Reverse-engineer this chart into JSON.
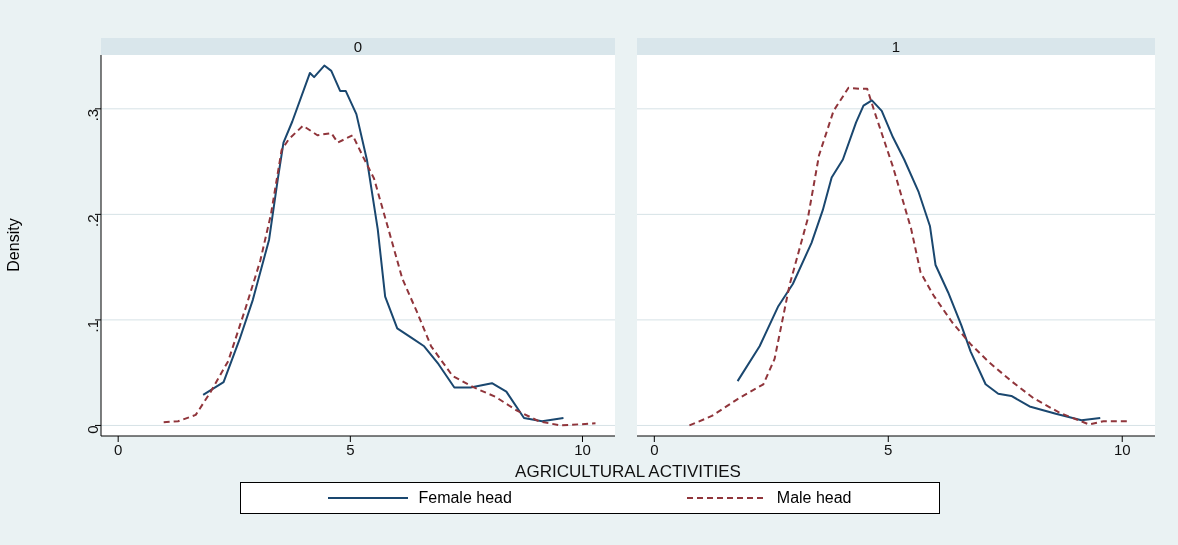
{
  "chart_data": [
    {
      "type": "line",
      "title": "0",
      "ylabel": "Density",
      "xlabel": "AGRICULTURAL ACTIVITIES",
      "xlim": [
        -0.37,
        10.7
      ],
      "xticks": [
        0,
        5,
        10
      ],
      "ylim": [
        -0.01,
        0.351
      ],
      "yticks": [
        {
          "value": 0,
          "label": "0"
        },
        {
          "value": 0.1,
          "label": ".1"
        },
        {
          "value": 0.2,
          "label": ".2"
        },
        {
          "value": 0.3,
          "label": ".3"
        }
      ],
      "grid": "y",
      "legend": "bottom",
      "series": [
        {
          "name": "Female head",
          "color": "#1a476f",
          "line_style": "solid",
          "x": [
            1.83,
            2.27,
            2.61,
            2.9,
            3.25,
            3.44,
            3.56,
            3.75,
            4.13,
            4.22,
            4.44,
            4.59,
            4.78,
            4.9,
            5.13,
            5.36,
            5.59,
            5.75,
            6.01,
            6.32,
            6.59,
            6.9,
            7.24,
            7.59,
            8.05,
            8.36,
            8.74,
            9.13,
            9.59
          ],
          "values": [
            0.029,
            0.041,
            0.081,
            0.119,
            0.176,
            0.234,
            0.268,
            0.288,
            0.334,
            0.33,
            0.341,
            0.336,
            0.317,
            0.317,
            0.295,
            0.251,
            0.186,
            0.122,
            0.092,
            0.083,
            0.075,
            0.058,
            0.036,
            0.036,
            0.04,
            0.032,
            0.007,
            0.004,
            0.007
          ]
        },
        {
          "name": "Male head",
          "color": "#90353b",
          "line_style": "dashed",
          "x": [
            0.98,
            1.29,
            1.67,
            1.98,
            2.37,
            2.75,
            3.06,
            3.29,
            3.52,
            3.67,
            3.98,
            4.29,
            4.59,
            4.73,
            5.05,
            5.28,
            5.51,
            5.82,
            6.12,
            6.43,
            6.74,
            7.2,
            7.66,
            8.13,
            8.59,
            9.06,
            9.52,
            10.28
          ],
          "values": [
            0.003,
            0.004,
            0.01,
            0.031,
            0.061,
            0.112,
            0.156,
            0.2,
            0.261,
            0.271,
            0.284,
            0.275,
            0.277,
            0.268,
            0.275,
            0.254,
            0.234,
            0.186,
            0.139,
            0.108,
            0.075,
            0.047,
            0.036,
            0.027,
            0.014,
            0.004,
            0.0,
            0.002
          ]
        }
      ]
    },
    {
      "type": "line",
      "title": "1",
      "xlim": [
        -0.37,
        10.7
      ],
      "xticks": [
        0,
        5,
        10
      ],
      "ylim": [
        -0.01,
        0.351
      ],
      "yticks": [
        0,
        0.1,
        0.2,
        0.3
      ],
      "grid": "y",
      "tick_labels": "x",
      "series": [
        {
          "color": "#1a476f",
          "line_style": "solid",
          "x": [
            1.78,
            2.25,
            2.65,
            2.96,
            3.36,
            3.6,
            3.79,
            4.03,
            4.31,
            4.47,
            4.65,
            4.86,
            5.1,
            5.34,
            5.65,
            5.89,
            6.01,
            6.28,
            6.56,
            6.76,
            7.08,
            7.35,
            7.63,
            8.02,
            8.58,
            9.13,
            9.53
          ],
          "values": [
            0.042,
            0.075,
            0.113,
            0.134,
            0.173,
            0.204,
            0.235,
            0.252,
            0.287,
            0.303,
            0.308,
            0.298,
            0.273,
            0.252,
            0.221,
            0.189,
            0.152,
            0.126,
            0.095,
            0.07,
            0.039,
            0.03,
            0.028,
            0.018,
            0.011,
            0.005,
            0.007
          ]
        },
        {
          "color": "#90353b",
          "line_style": "dashed",
          "x": [
            0.75,
            1.23,
            1.78,
            2.33,
            2.57,
            2.89,
            3.28,
            3.52,
            3.83,
            4.15,
            4.39,
            4.55,
            4.7,
            5.1,
            5.49,
            5.69,
            5.97,
            6.36,
            6.76,
            7.15,
            7.63,
            8.1,
            8.66,
            9.29,
            9.6,
            10.16
          ],
          "values": [
            0.0,
            0.009,
            0.025,
            0.039,
            0.063,
            0.133,
            0.196,
            0.256,
            0.298,
            0.32,
            0.319,
            0.319,
            0.298,
            0.245,
            0.186,
            0.145,
            0.123,
            0.098,
            0.077,
            0.06,
            0.042,
            0.026,
            0.012,
            0.001,
            0.004,
            0.004
          ]
        }
      ]
    }
  ]
}
